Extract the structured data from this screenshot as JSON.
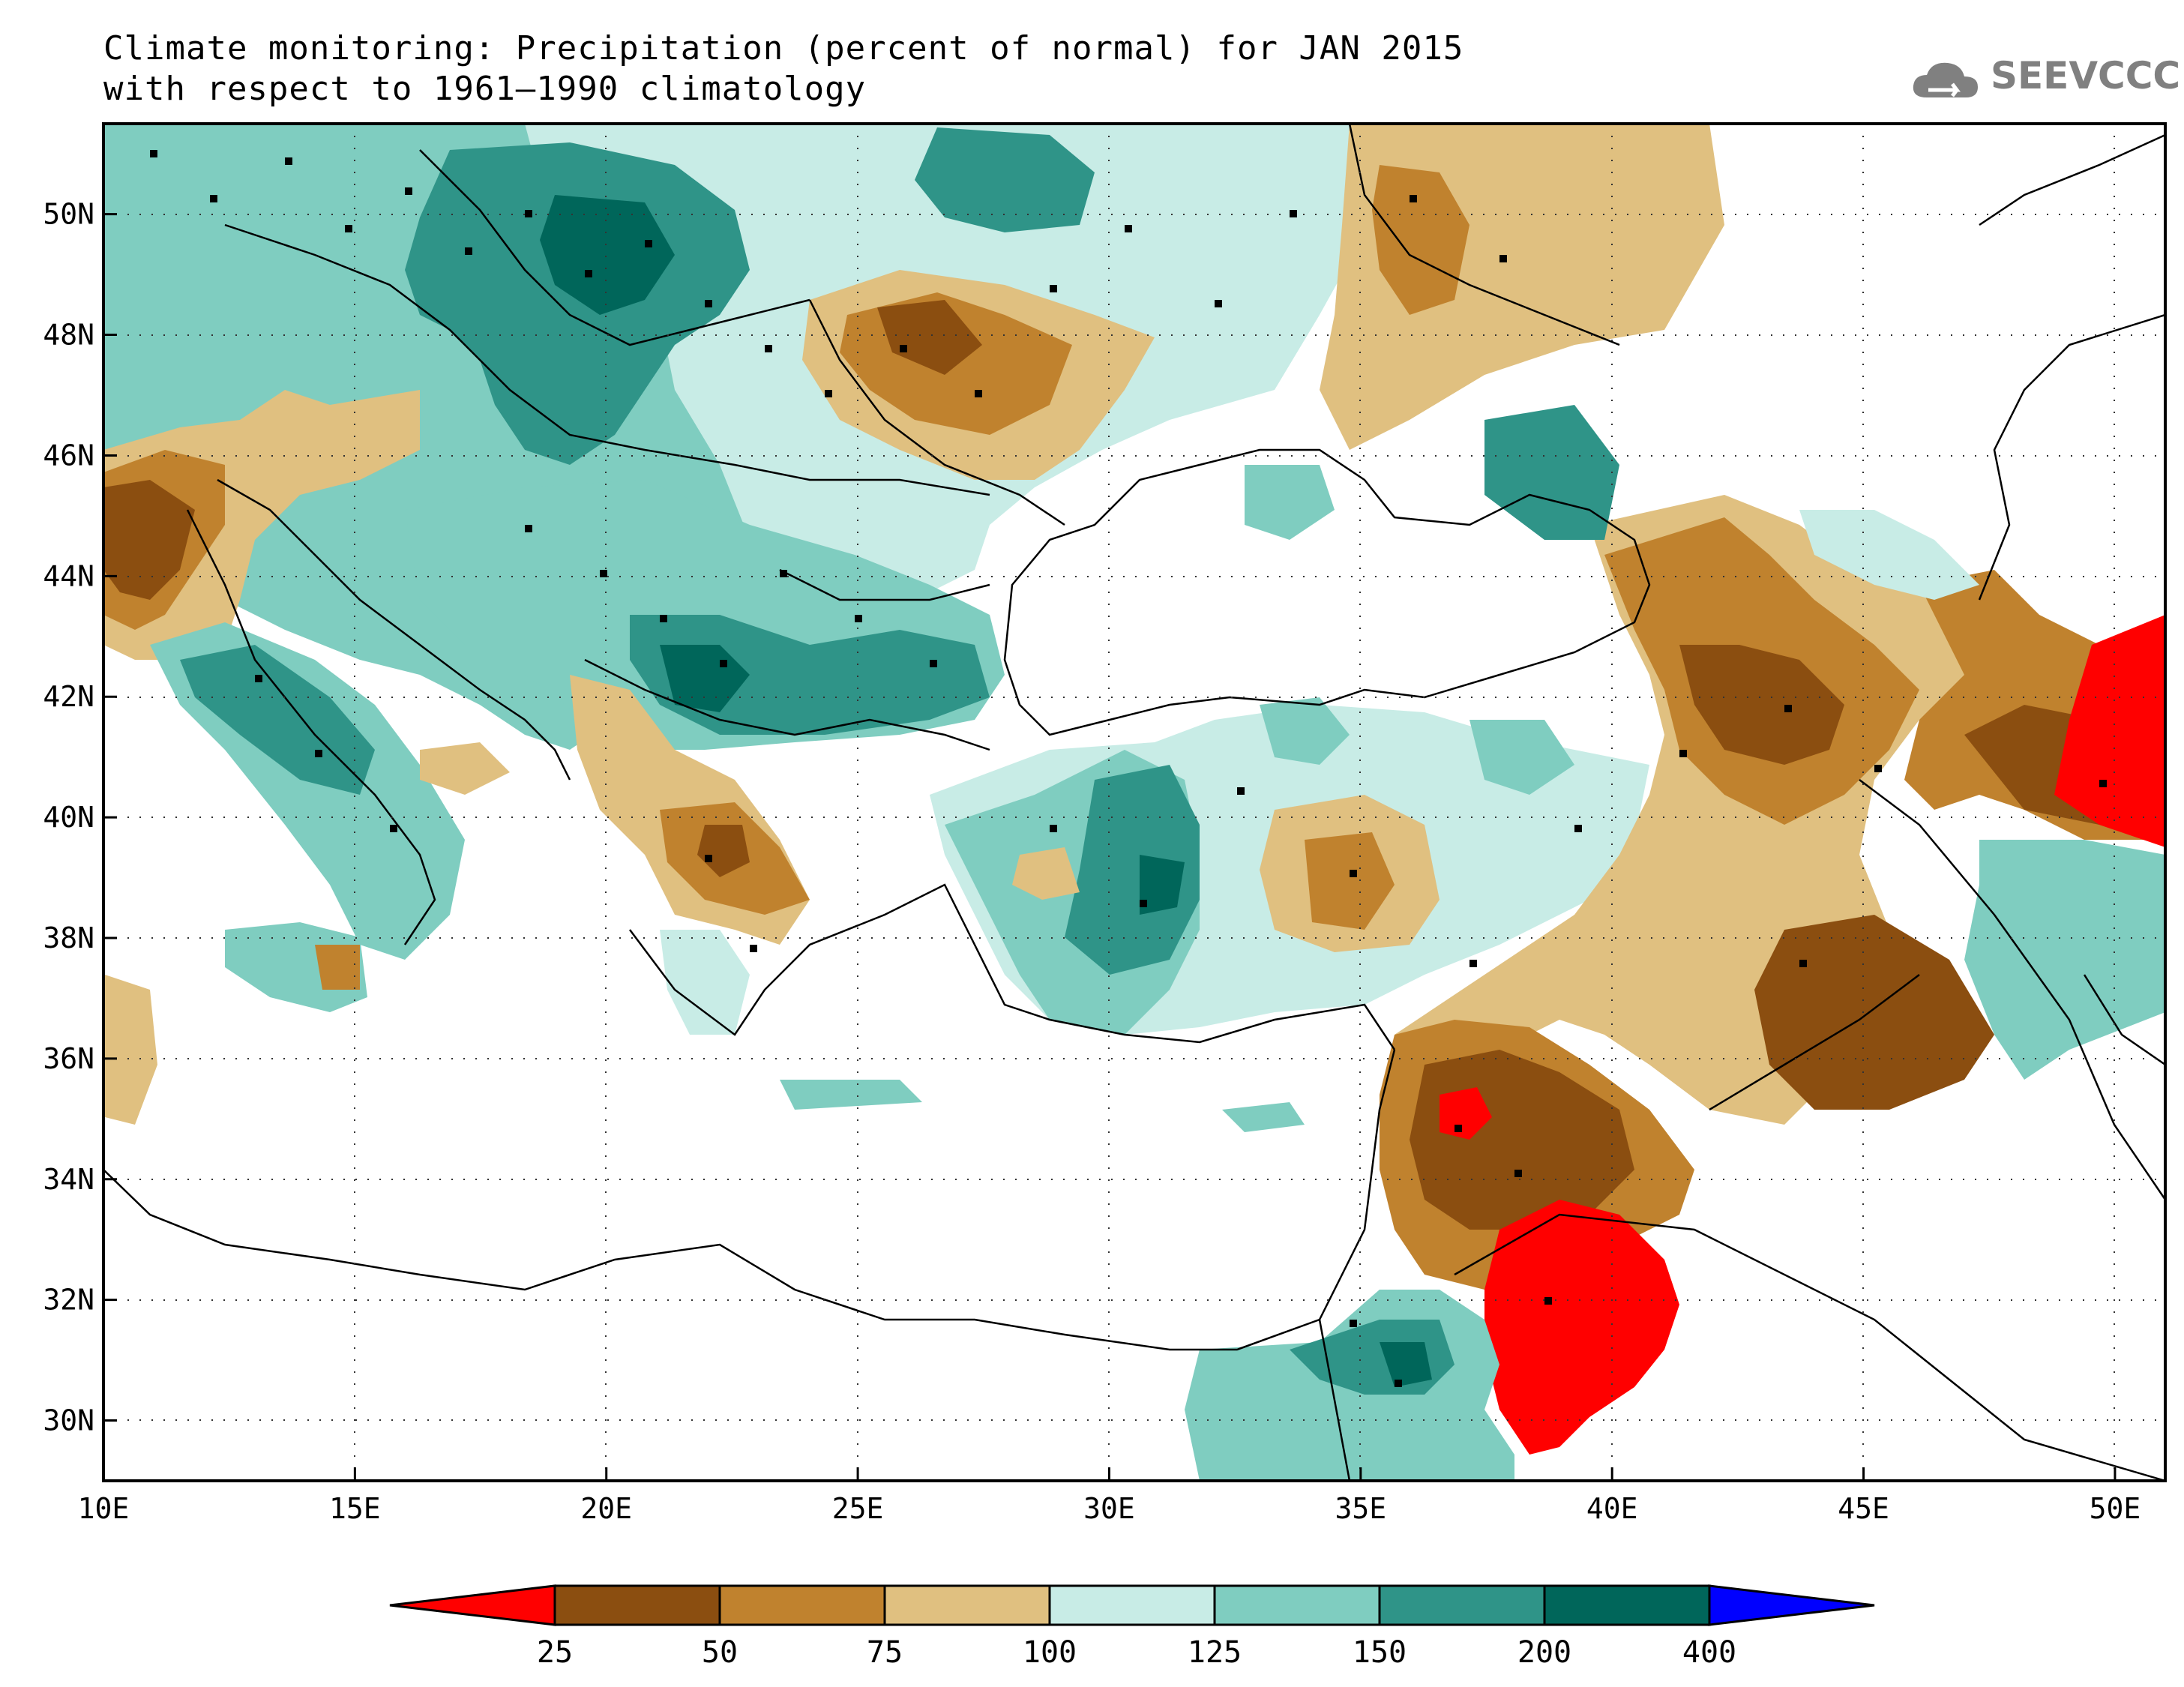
{
  "title": {
    "line1": "Climate monitoring: Precipitation (percent of normal) for JAN 2015",
    "line2": "with respect to 1961–1990 climatology"
  },
  "logo": {
    "text": "SEEVCCC",
    "icon": "cloud-logo-icon",
    "color": "#808080"
  },
  "map": {
    "lon_range": [
      10,
      51
    ],
    "lat_range": [
      29,
      51.5
    ],
    "lon_ticks": [
      "10E",
      "15E",
      "20E",
      "25E",
      "30E",
      "35E",
      "40E",
      "45E",
      "50E"
    ],
    "lat_ticks": [
      "50N",
      "48N",
      "46N",
      "44N",
      "42N",
      "40N",
      "38N",
      "36N",
      "34N",
      "32N",
      "30N"
    ],
    "grid": "dotted"
  },
  "colorbar": {
    "labels": [
      "25",
      "50",
      "75",
      "100",
      "125",
      "150",
      "200",
      "400"
    ],
    "colors": [
      "#ff0000",
      "#8b4e10",
      "#c0822e",
      "#e0c080",
      "#c8ece6",
      "#7fcdc0",
      "#2f9488",
      "#00665a",
      "#0000ff"
    ],
    "legend_placement": "bottom"
  }
}
